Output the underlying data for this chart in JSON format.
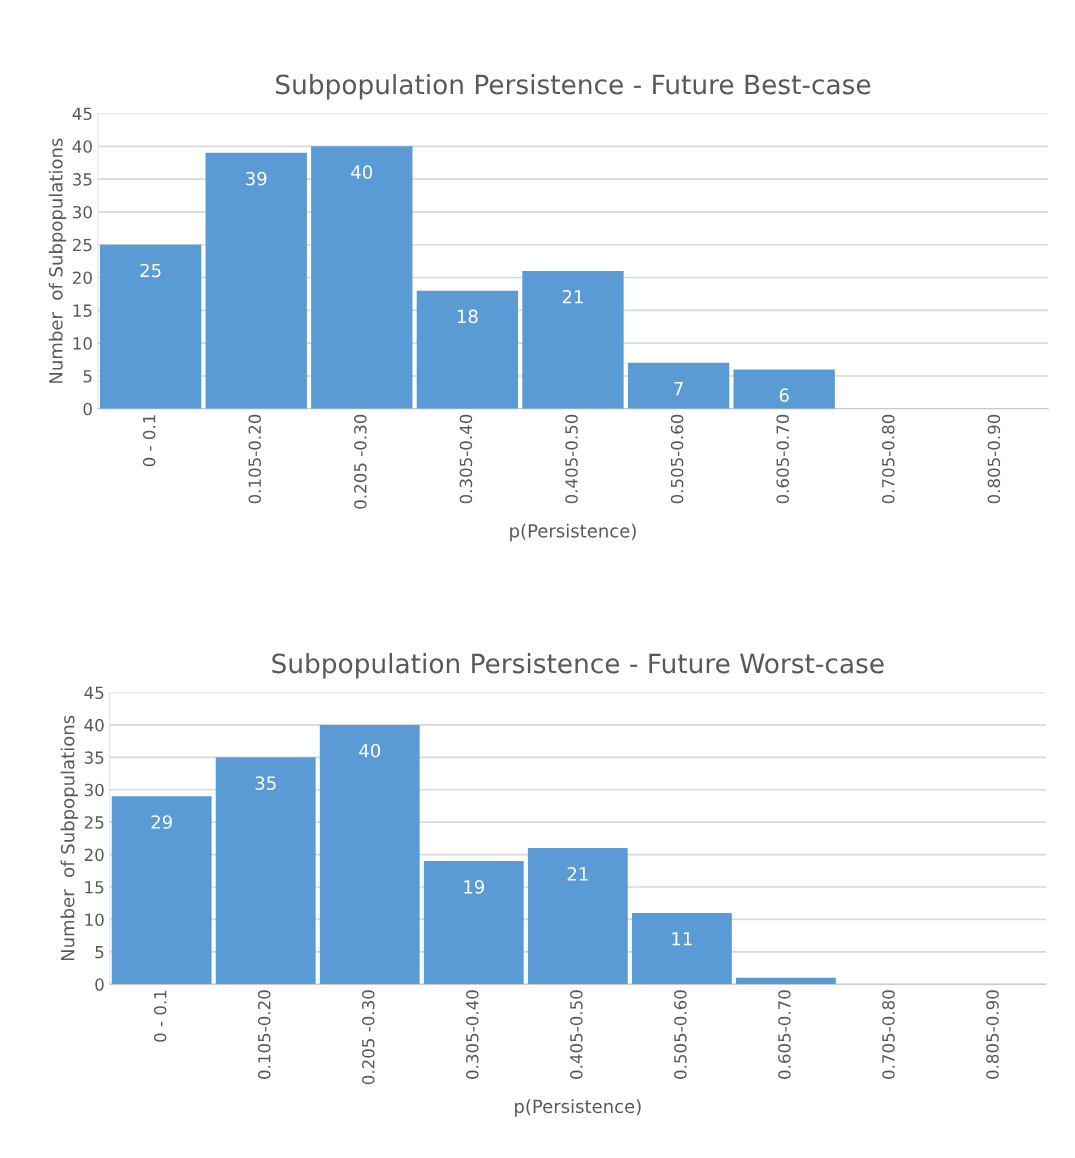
{
  "chart_data": [
    {
      "type": "bar",
      "title": "Subpopulation Persistence - Future Best-case",
      "xlabel": "p(Persistence)",
      "ylabel": "Number  of Subpopulations",
      "categories": [
        "0 - 0.1",
        "0.105-0.20",
        "0.205 -0.30",
        "0.305-0.40",
        "0.405-0.50",
        "0.505-0.60",
        "0.605-0.70",
        "0.705-0.80",
        "0.805-0.90"
      ],
      "values": [
        25,
        39,
        40,
        18,
        21,
        7,
        6,
        0,
        0
      ],
      "value_labels": [
        "25",
        "39",
        "40",
        "18",
        "21",
        "7",
        "6",
        null,
        null
      ],
      "color": "#5b9bd5",
      "ylim": [
        0,
        45
      ],
      "yticks": [
        0,
        5,
        10,
        15,
        20,
        25,
        30,
        35,
        40,
        45
      ],
      "grid": "y"
    },
    {
      "type": "bar",
      "title": "Subpopulation Persistence - Future Worst-case",
      "xlabel": "p(Persistence)",
      "ylabel": "Number  of Subpopulations",
      "categories": [
        "0 - 0.1",
        "0.105-0.20",
        "0.205 -0.30",
        "0.305-0.40",
        "0.405-0.50",
        "0.505-0.60",
        "0.605-0.70",
        "0.705-0.80",
        "0.805-0.90"
      ],
      "values": [
        29,
        35,
        40,
        19,
        21,
        11,
        1,
        0,
        0
      ],
      "value_labels": [
        "29",
        "35",
        "40",
        "19",
        "21",
        "11",
        null,
        null,
        null
      ],
      "color": "#5b9bd5",
      "ylim": [
        0,
        45
      ],
      "yticks": [
        0,
        5,
        10,
        15,
        20,
        25,
        30,
        35,
        40,
        45
      ],
      "grid": "y"
    }
  ]
}
